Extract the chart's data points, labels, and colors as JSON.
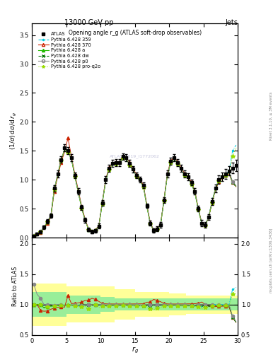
{
  "title_top": "13000 GeV pp",
  "title_right": "Jets",
  "plot_title": "Opening angle r_g (ATLAS soft-drop observables)",
  "watermark": "ATLAS_2019_I1772062",
  "right_label": "Rivet 3.1.10, ≥ 3M events",
  "right_label2": "mcplots.cern.ch [arXiv:1306.3436]",
  "xlim": [
    0,
    30
  ],
  "ylim_main": [
    0,
    3.7
  ],
  "ylim_ratio": [
    0.5,
    2.1
  ],
  "yticks_main": [
    0,
    0.5,
    1.0,
    1.5,
    2.0,
    2.5,
    3.0,
    3.5
  ],
  "yticks_ratio": [
    0.5,
    1.0,
    1.5,
    2.0
  ],
  "xticks": [
    0,
    5,
    10,
    15,
    20,
    25,
    30
  ],
  "color_atlas": "#000000",
  "color_p359": "#00ccdd",
  "color_p370": "#cc2200",
  "color_pa": "#22bb00",
  "color_pdw": "#007700",
  "color_pp0": "#888888",
  "color_pproq2o": "#99dd00",
  "band_yellow": "#ffff99",
  "band_green": "#99ee99",
  "n_bins": 60,
  "atlas_y": [
    0.03,
    0.06,
    0.1,
    0.18,
    0.28,
    0.38,
    0.85,
    1.1,
    1.35,
    1.55,
    1.5,
    1.38,
    1.08,
    0.8,
    0.52,
    0.3,
    0.14,
    0.1,
    0.12,
    0.2,
    0.6,
    1.0,
    1.2,
    1.28,
    1.3,
    1.3,
    1.4,
    1.38,
    1.28,
    1.18,
    1.08,
    1.0,
    0.9,
    0.55,
    0.25,
    0.12,
    0.15,
    0.22,
    0.65,
    1.1,
    1.32,
    1.38,
    1.3,
    1.2,
    1.1,
    1.05,
    0.95,
    0.8,
    0.5,
    0.25,
    0.22,
    0.35,
    0.62,
    0.85,
    1.0,
    1.05,
    1.1,
    1.15,
    1.2,
    1.25
  ],
  "atlas_yerr": [
    0.01,
    0.02,
    0.02,
    0.03,
    0.04,
    0.04,
    0.05,
    0.06,
    0.06,
    0.06,
    0.06,
    0.06,
    0.05,
    0.05,
    0.04,
    0.04,
    0.03,
    0.03,
    0.03,
    0.04,
    0.05,
    0.06,
    0.06,
    0.06,
    0.06,
    0.06,
    0.06,
    0.06,
    0.06,
    0.05,
    0.05,
    0.05,
    0.05,
    0.04,
    0.04,
    0.04,
    0.04,
    0.05,
    0.05,
    0.06,
    0.06,
    0.06,
    0.06,
    0.06,
    0.06,
    0.06,
    0.05,
    0.05,
    0.05,
    0.05,
    0.05,
    0.05,
    0.06,
    0.07,
    0.07,
    0.07,
    0.08,
    0.08,
    0.09,
    0.1
  ],
  "p359_y": [
    0.03,
    0.06,
    0.1,
    0.17,
    0.27,
    0.37,
    0.83,
    1.08,
    1.33,
    1.52,
    1.47,
    1.36,
    1.06,
    0.78,
    0.51,
    0.3,
    0.14,
    0.1,
    0.12,
    0.2,
    0.59,
    0.98,
    1.18,
    1.26,
    1.28,
    1.28,
    1.38,
    1.36,
    1.26,
    1.16,
    1.06,
    0.98,
    0.88,
    0.54,
    0.24,
    0.12,
    0.15,
    0.22,
    0.64,
    1.08,
    1.3,
    1.36,
    1.28,
    1.18,
    1.08,
    1.03,
    0.93,
    0.78,
    0.49,
    0.24,
    0.22,
    0.35,
    0.62,
    0.85,
    1.0,
    1.05,
    1.1,
    1.15,
    1.5,
    1.6
  ],
  "p370_y": [
    0.03,
    0.06,
    0.09,
    0.16,
    0.25,
    0.35,
    0.8,
    1.05,
    1.3,
    1.48,
    1.72,
    1.4,
    1.1,
    0.82,
    0.54,
    0.32,
    0.15,
    0.11,
    0.13,
    0.21,
    0.61,
    1.01,
    1.21,
    1.29,
    1.31,
    1.31,
    1.41,
    1.39,
    1.29,
    1.19,
    1.09,
    1.01,
    0.91,
    0.57,
    0.26,
    0.13,
    0.16,
    0.23,
    0.66,
    1.11,
    1.33,
    1.39,
    1.31,
    1.21,
    1.11,
    1.06,
    0.96,
    0.81,
    0.51,
    0.26,
    0.22,
    0.34,
    0.6,
    0.82,
    0.97,
    1.02,
    1.07,
    1.1,
    0.95,
    0.88
  ],
  "pa_y": [
    0.03,
    0.06,
    0.1,
    0.17,
    0.27,
    0.37,
    0.83,
    1.09,
    1.34,
    1.53,
    1.49,
    1.37,
    1.07,
    0.79,
    0.52,
    0.3,
    0.14,
    0.1,
    0.12,
    0.2,
    0.6,
    0.99,
    1.19,
    1.27,
    1.29,
    1.29,
    1.39,
    1.37,
    1.27,
    1.17,
    1.07,
    0.99,
    0.89,
    0.55,
    0.25,
    0.12,
    0.15,
    0.22,
    0.65,
    1.09,
    1.31,
    1.37,
    1.29,
    1.19,
    1.09,
    1.04,
    0.94,
    0.79,
    0.5,
    0.25,
    0.22,
    0.35,
    0.62,
    0.84,
    0.99,
    1.04,
    1.09,
    1.13,
    0.96,
    0.89
  ],
  "pdw_y": [
    0.03,
    0.06,
    0.1,
    0.17,
    0.27,
    0.37,
    0.83,
    1.08,
    1.33,
    1.52,
    1.48,
    1.36,
    1.06,
    0.78,
    0.51,
    0.3,
    0.14,
    0.1,
    0.12,
    0.2,
    0.59,
    0.98,
    1.18,
    1.26,
    1.28,
    1.28,
    1.38,
    1.36,
    1.26,
    1.16,
    1.06,
    0.98,
    0.88,
    0.54,
    0.24,
    0.12,
    0.15,
    0.22,
    0.64,
    1.08,
    1.3,
    1.36,
    1.28,
    1.18,
    1.08,
    1.03,
    0.93,
    0.78,
    0.49,
    0.24,
    0.22,
    0.34,
    0.6,
    0.83,
    0.98,
    1.03,
    1.08,
    1.12,
    0.95,
    0.88
  ],
  "pp0_y": [
    0.04,
    0.07,
    0.11,
    0.18,
    0.28,
    0.38,
    0.84,
    1.1,
    1.35,
    1.52,
    1.48,
    1.37,
    1.07,
    0.79,
    0.51,
    0.3,
    0.14,
    0.1,
    0.12,
    0.2,
    0.6,
    0.99,
    1.19,
    1.27,
    1.29,
    1.29,
    1.39,
    1.37,
    1.27,
    1.17,
    1.07,
    0.99,
    0.89,
    0.55,
    0.25,
    0.12,
    0.15,
    0.22,
    0.65,
    1.09,
    1.31,
    1.37,
    1.29,
    1.19,
    1.09,
    1.04,
    0.94,
    0.79,
    0.5,
    0.25,
    0.22,
    0.35,
    0.62,
    0.84,
    0.99,
    1.04,
    1.09,
    1.14,
    0.97,
    0.9
  ],
  "pproq2o_y": [
    0.03,
    0.06,
    0.1,
    0.17,
    0.27,
    0.37,
    0.83,
    1.08,
    1.33,
    1.51,
    1.47,
    1.35,
    1.05,
    0.77,
    0.5,
    0.29,
    0.13,
    0.1,
    0.12,
    0.19,
    0.58,
    0.97,
    1.17,
    1.25,
    1.27,
    1.27,
    1.37,
    1.35,
    1.25,
    1.15,
    1.05,
    0.97,
    0.87,
    0.53,
    0.23,
    0.11,
    0.14,
    0.21,
    0.63,
    1.07,
    1.29,
    1.35,
    1.27,
    1.17,
    1.07,
    1.02,
    0.92,
    0.77,
    0.48,
    0.23,
    0.21,
    0.33,
    0.6,
    0.83,
    0.98,
    1.03,
    1.08,
    1.12,
    1.4,
    1.55
  ],
  "yellow_lo": [
    0.65,
    0.65,
    0.65,
    0.65,
    0.65,
    0.65,
    0.65,
    0.65,
    0.65,
    0.65,
    0.7,
    0.7,
    0.7,
    0.7,
    0.7,
    0.7,
    0.7,
    0.7,
    0.7,
    0.7,
    0.7,
    0.7,
    0.7,
    0.7,
    0.75,
    0.75,
    0.75,
    0.75,
    0.75,
    0.75,
    0.8,
    0.8,
    0.8,
    0.8,
    0.8,
    0.8,
    0.8,
    0.8,
    0.8,
    0.8,
    0.82,
    0.82,
    0.82,
    0.82,
    0.82,
    0.85,
    0.85,
    0.85,
    0.85,
    0.85,
    0.85,
    0.85,
    0.85,
    0.85,
    0.85,
    0.85,
    0.85,
    0.85,
    0.85,
    0.85
  ],
  "yellow_hi": [
    1.35,
    1.35,
    1.35,
    1.35,
    1.35,
    1.35,
    1.35,
    1.35,
    1.35,
    1.35,
    1.3,
    1.3,
    1.3,
    1.3,
    1.3,
    1.3,
    1.3,
    1.3,
    1.3,
    1.3,
    1.3,
    1.3,
    1.3,
    1.3,
    1.25,
    1.25,
    1.25,
    1.25,
    1.25,
    1.25,
    1.2,
    1.2,
    1.2,
    1.2,
    1.2,
    1.2,
    1.2,
    1.2,
    1.2,
    1.2,
    1.18,
    1.18,
    1.18,
    1.18,
    1.18,
    1.15,
    1.15,
    1.15,
    1.15,
    1.15,
    1.15,
    1.15,
    1.15,
    1.15,
    1.15,
    1.15,
    1.15,
    1.15,
    1.15,
    1.15
  ],
  "green_lo": [
    0.8,
    0.8,
    0.8,
    0.8,
    0.8,
    0.8,
    0.8,
    0.8,
    0.8,
    0.8,
    0.85,
    0.85,
    0.85,
    0.85,
    0.85,
    0.85,
    0.85,
    0.85,
    0.85,
    0.85,
    0.88,
    0.88,
    0.88,
    0.88,
    0.9,
    0.9,
    0.9,
    0.9,
    0.9,
    0.9,
    0.9,
    0.9,
    0.9,
    0.9,
    0.9,
    0.9,
    0.9,
    0.9,
    0.9,
    0.9,
    0.9,
    0.9,
    0.9,
    0.9,
    0.9,
    0.9,
    0.9,
    0.9,
    0.9,
    0.9,
    0.9,
    0.9,
    0.9,
    0.9,
    0.9,
    0.9,
    0.9,
    0.9,
    0.9,
    0.9
  ],
  "green_hi": [
    1.2,
    1.2,
    1.2,
    1.2,
    1.2,
    1.2,
    1.2,
    1.2,
    1.2,
    1.2,
    1.15,
    1.15,
    1.15,
    1.15,
    1.15,
    1.15,
    1.15,
    1.15,
    1.15,
    1.15,
    1.12,
    1.12,
    1.12,
    1.12,
    1.1,
    1.1,
    1.1,
    1.1,
    1.1,
    1.1,
    1.1,
    1.1,
    1.1,
    1.1,
    1.1,
    1.1,
    1.1,
    1.1,
    1.1,
    1.1,
    1.1,
    1.1,
    1.1,
    1.1,
    1.1,
    1.1,
    1.1,
    1.1,
    1.1,
    1.1,
    1.1,
    1.1,
    1.1,
    1.1,
    1.1,
    1.1,
    1.1,
    1.1,
    1.1,
    1.1
  ]
}
